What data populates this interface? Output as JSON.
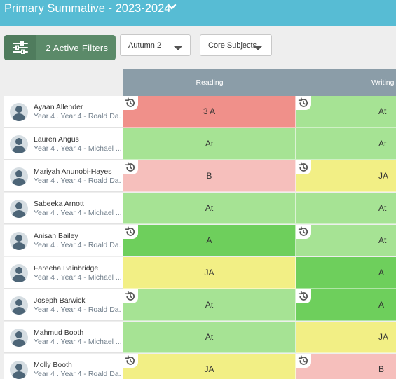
{
  "header": {
    "title": "Primary Summative - 2023-2024"
  },
  "filters": {
    "active_label": "2 Active Filters",
    "term_select": "Autumn 2",
    "subject_select": "Core Subjects"
  },
  "columns": [
    "Reading",
    "Writing"
  ],
  "grade_colors": {
    "red": "#f0908a",
    "pink": "#f6bfbc",
    "light_green": "#a6e394",
    "green": "#6ecf5c",
    "yellow": "#f2ef85"
  },
  "pupils": [
    {
      "name": "Ayaan Allender",
      "info": "Year 4 . Year 4 - Roald Da...",
      "reading": "3 A",
      "reading_color": "red",
      "reading_history": true,
      "writing": "At",
      "writing_color": "light_green",
      "writing_history": true
    },
    {
      "name": "Lauren Angus",
      "info": "Year 4 . Year 4 - Michael ...",
      "reading": "At",
      "reading_color": "light_green",
      "reading_history": false,
      "writing": "At",
      "writing_color": "light_green",
      "writing_history": false
    },
    {
      "name": "Mariyah Anunobi-Hayes",
      "info": "Year 4 . Year 4 - Roald Da...",
      "reading": "B",
      "reading_color": "pink",
      "reading_history": true,
      "writing": "JA",
      "writing_color": "yellow",
      "writing_history": true
    },
    {
      "name": "Sabeeka Arnott",
      "info": "Year 4 . Year 4 - Michael ...",
      "reading": "At",
      "reading_color": "light_green",
      "reading_history": false,
      "writing": "At",
      "writing_color": "light_green",
      "writing_history": false
    },
    {
      "name": "Anisah Bailey",
      "info": "Year 4 . Year 4 - Roald Da...",
      "reading": "A",
      "reading_color": "green",
      "reading_history": true,
      "writing": "At",
      "writing_color": "light_green",
      "writing_history": true
    },
    {
      "name": "Fareeha Bainbridge",
      "info": "Year 4 . Year 4 - Michael ...",
      "reading": "JA",
      "reading_color": "yellow",
      "reading_history": false,
      "writing": "A",
      "writing_color": "green",
      "writing_history": false
    },
    {
      "name": "Joseph Barwick",
      "info": "Year 4 . Year 4 - Roald Da...",
      "reading": "At",
      "reading_color": "light_green",
      "reading_history": true,
      "writing": "A",
      "writing_color": "green",
      "writing_history": true
    },
    {
      "name": "Mahmud Booth",
      "info": "Year 4 . Year 4 - Michael ...",
      "reading": "At",
      "reading_color": "light_green",
      "reading_history": false,
      "writing": "JA",
      "writing_color": "yellow",
      "writing_history": false
    },
    {
      "name": "Molly Booth",
      "info": "Year 4 . Year 4 - Roald Da...",
      "reading": "JA",
      "reading_color": "yellow",
      "reading_history": true,
      "writing": "B",
      "writing_color": "pink",
      "writing_history": true
    }
  ]
}
